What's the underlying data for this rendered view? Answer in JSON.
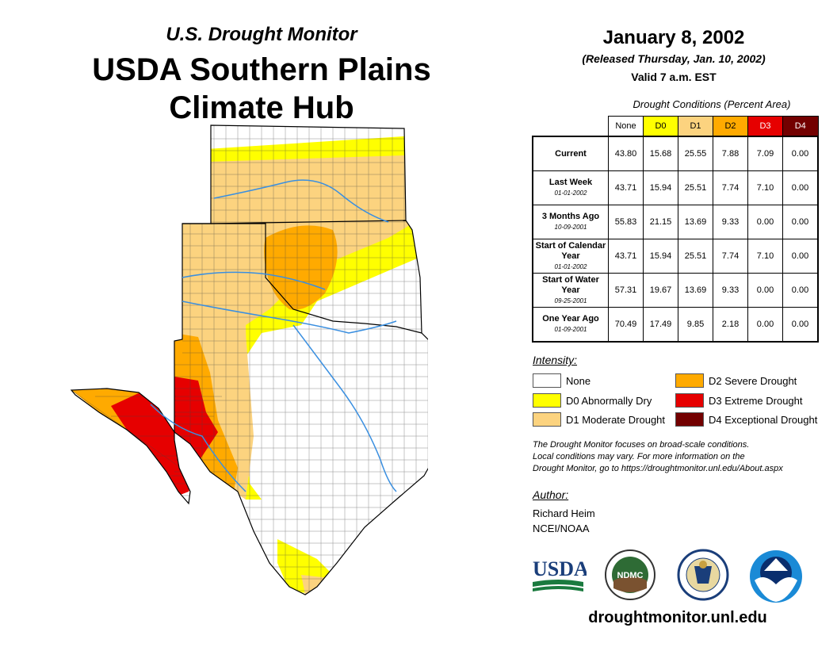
{
  "header": {
    "supertitle": "U.S. Drought Monitor",
    "title_line1": "USDA Southern Plains",
    "title_line2": "Climate Hub"
  },
  "map_info": {
    "date": "January 8, 2002",
    "released": "(Released Thursday, Jan. 10, 2002)",
    "valid": "Valid 7 a.m. EST"
  },
  "table": {
    "title": "Drought Conditions (Percent Area)",
    "columns": [
      "None",
      "D0",
      "D1",
      "D2",
      "D3",
      "D4"
    ],
    "column_colors": [
      "#ffffff",
      "#ffff00",
      "#fcd37f",
      "#ffaa00",
      "#e60000",
      "#730000"
    ],
    "column_text_colors": [
      "#000000",
      "#000000",
      "#000000",
      "#000000",
      "#ffffff",
      "#ffffff"
    ],
    "rows": [
      {
        "label": "Current",
        "date": "",
        "values": [
          "43.80",
          "15.68",
          "25.55",
          "7.88",
          "7.09",
          "0.00"
        ]
      },
      {
        "label": "Last Week",
        "date": "01-01-2002",
        "values": [
          "43.71",
          "15.94",
          "25.51",
          "7.74",
          "7.10",
          "0.00"
        ]
      },
      {
        "label": "3 Months Ago",
        "date": "10-09-2001",
        "values": [
          "55.83",
          "21.15",
          "13.69",
          "9.33",
          "0.00",
          "0.00"
        ]
      },
      {
        "label": "Start of Calendar Year",
        "date": "01-01-2002",
        "values": [
          "43.71",
          "15.94",
          "25.51",
          "7.74",
          "7.10",
          "0.00"
        ]
      },
      {
        "label": "Start of Water Year",
        "date": "09-25-2001",
        "values": [
          "57.31",
          "19.67",
          "13.69",
          "9.33",
          "0.00",
          "0.00"
        ]
      },
      {
        "label": "One Year Ago",
        "date": "01-09-2001",
        "values": [
          "70.49",
          "17.49",
          "9.85",
          "2.18",
          "0.00",
          "0.00"
        ]
      }
    ]
  },
  "legend": {
    "title": "Intensity:",
    "items": [
      {
        "label": "None",
        "color": "#ffffff"
      },
      {
        "label": "D0 Abnormally Dry",
        "color": "#ffff00"
      },
      {
        "label": "D1 Moderate Drought",
        "color": "#fcd37f"
      },
      {
        "label": "D2 Severe Drought",
        "color": "#ffaa00"
      },
      {
        "label": "D3 Extreme Drought",
        "color": "#e60000"
      },
      {
        "label": "D4 Exceptional Drought",
        "color": "#730000"
      }
    ]
  },
  "note": {
    "line1": "The Drought Monitor focuses on broad-scale conditions.",
    "line2": "Local conditions may vary. For more information on the",
    "line3": "Drought Monitor, go to https://droughtmonitor.unl.edu/About.aspx"
  },
  "author": {
    "label": "Author:",
    "name": "Richard Heim",
    "org": "NCEI/NOAA"
  },
  "logos": {
    "usda": "USDA",
    "ndmc": "NDMC"
  },
  "footer_url": "droughtmonitor.unl.edu"
}
